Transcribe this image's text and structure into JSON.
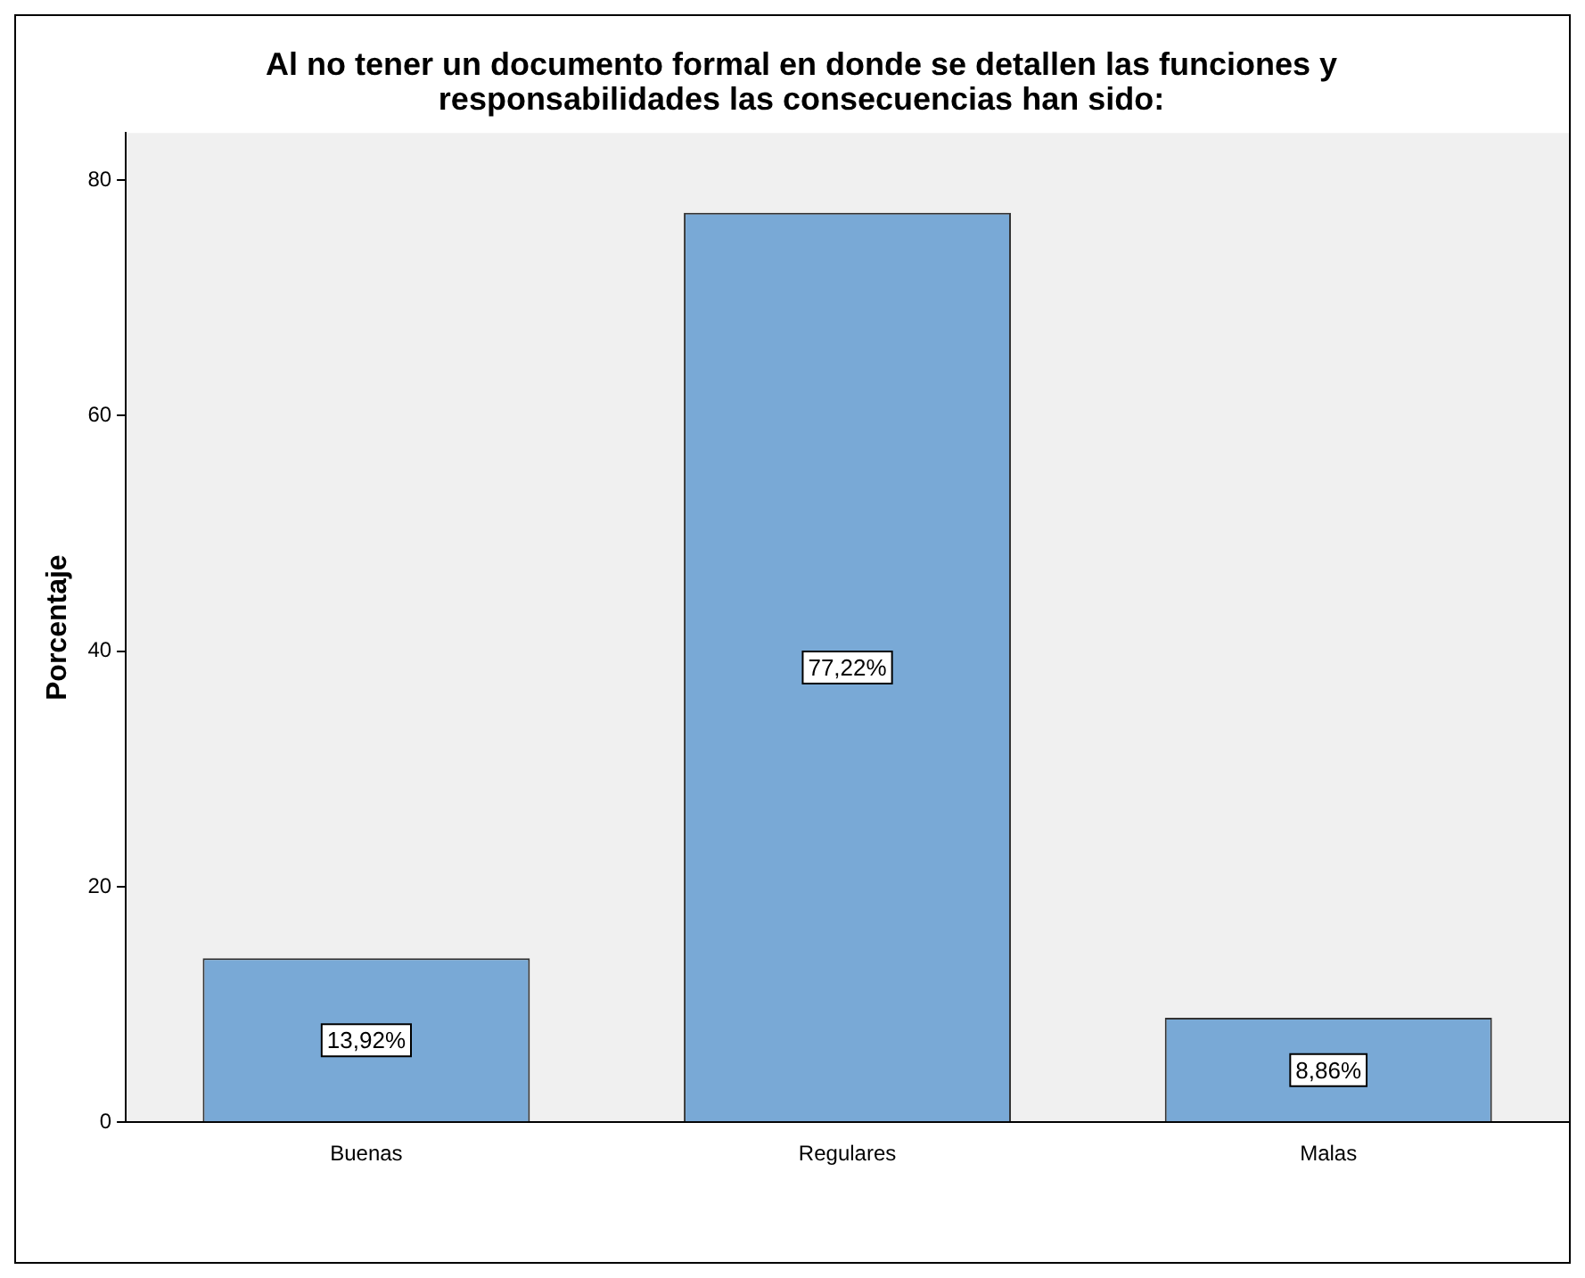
{
  "chart_data": {
    "type": "bar",
    "title": "Al no tener un documento formal en donde se detallen las funciones y responsabilidades las consecuencias han sido:",
    "ylabel": "Porcentaje",
    "categories": [
      "Buenas",
      "Regulares",
      "Malas"
    ],
    "values": [
      13.92,
      77.22,
      8.86
    ],
    "color": "#79a9d6",
    "value_labels": [
      "13,92%",
      "77,22%",
      "8,86%"
    ],
    "ylim": [
      0,
      84
    ],
    "yticks": [
      0,
      20,
      40,
      60,
      80
    ],
    "grid": false,
    "legend": false
  }
}
